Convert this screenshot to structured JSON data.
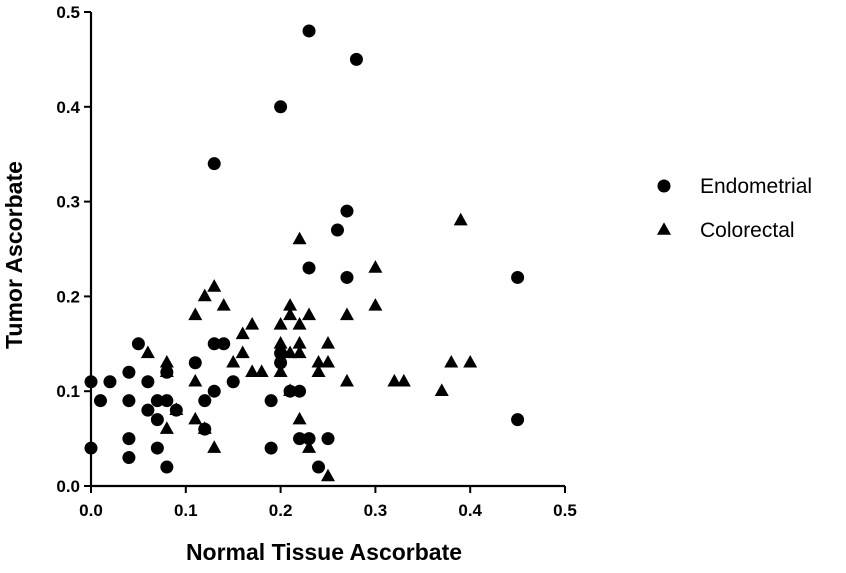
{
  "chart_data": {
    "type": "scatter",
    "xlabel": "Normal Tissue Ascorbate",
    "ylabel": "Tumor Ascorbate",
    "xlim": [
      0,
      0.5
    ],
    "ylim": [
      0,
      0.5
    ],
    "xticks": [
      "0.0",
      "0.1",
      "0.2",
      "0.3",
      "0.4",
      "0.5"
    ],
    "yticks": [
      "0.0",
      "0.1",
      "0.2",
      "0.3",
      "0.4",
      "0.5"
    ],
    "grid": false,
    "legend_position": "right",
    "series": [
      {
        "name": "Endometrial",
        "marker": "circle",
        "color": "#000000",
        "points": [
          [
            0.0,
            0.11
          ],
          [
            0.0,
            0.04
          ],
          [
            0.01,
            0.09
          ],
          [
            0.02,
            0.11
          ],
          [
            0.04,
            0.12
          ],
          [
            0.04,
            0.09
          ],
          [
            0.04,
            0.05
          ],
          [
            0.04,
            0.03
          ],
          [
            0.05,
            0.15
          ],
          [
            0.06,
            0.11
          ],
          [
            0.06,
            0.08
          ],
          [
            0.07,
            0.09
          ],
          [
            0.07,
            0.07
          ],
          [
            0.07,
            0.04
          ],
          [
            0.08,
            0.12
          ],
          [
            0.08,
            0.09
          ],
          [
            0.08,
            0.02
          ],
          [
            0.09,
            0.08
          ],
          [
            0.11,
            0.13
          ],
          [
            0.12,
            0.09
          ],
          [
            0.12,
            0.06
          ],
          [
            0.13,
            0.15
          ],
          [
            0.13,
            0.1
          ],
          [
            0.13,
            0.34
          ],
          [
            0.14,
            0.15
          ],
          [
            0.15,
            0.11
          ],
          [
            0.19,
            0.09
          ],
          [
            0.19,
            0.04
          ],
          [
            0.2,
            0.4
          ],
          [
            0.2,
            0.14
          ],
          [
            0.2,
            0.13
          ],
          [
            0.21,
            0.1
          ],
          [
            0.22,
            0.05
          ],
          [
            0.22,
            0.1
          ],
          [
            0.23,
            0.48
          ],
          [
            0.23,
            0.23
          ],
          [
            0.23,
            0.05
          ],
          [
            0.24,
            0.02
          ],
          [
            0.25,
            0.05
          ],
          [
            0.26,
            0.27
          ],
          [
            0.27,
            0.29
          ],
          [
            0.27,
            0.22
          ],
          [
            0.28,
            0.45
          ],
          [
            0.45,
            0.22
          ],
          [
            0.45,
            0.07
          ]
        ]
      },
      {
        "name": "Colorectal",
        "marker": "triangle",
        "color": "#000000",
        "points": [
          [
            0.06,
            0.14
          ],
          [
            0.08,
            0.13
          ],
          [
            0.08,
            0.12
          ],
          [
            0.08,
            0.06
          ],
          [
            0.09,
            0.08
          ],
          [
            0.11,
            0.18
          ],
          [
            0.11,
            0.11
          ],
          [
            0.11,
            0.07
          ],
          [
            0.12,
            0.2
          ],
          [
            0.12,
            0.06
          ],
          [
            0.13,
            0.21
          ],
          [
            0.13,
            0.04
          ],
          [
            0.14,
            0.19
          ],
          [
            0.15,
            0.13
          ],
          [
            0.16,
            0.16
          ],
          [
            0.16,
            0.14
          ],
          [
            0.17,
            0.17
          ],
          [
            0.17,
            0.12
          ],
          [
            0.18,
            0.12
          ],
          [
            0.2,
            0.17
          ],
          [
            0.2,
            0.15
          ],
          [
            0.2,
            0.12
          ],
          [
            0.21,
            0.19
          ],
          [
            0.21,
            0.18
          ],
          [
            0.21,
            0.14
          ],
          [
            0.21,
            0.1
          ],
          [
            0.22,
            0.26
          ],
          [
            0.22,
            0.17
          ],
          [
            0.22,
            0.15
          ],
          [
            0.22,
            0.14
          ],
          [
            0.22,
            0.07
          ],
          [
            0.23,
            0.18
          ],
          [
            0.23,
            0.04
          ],
          [
            0.24,
            0.13
          ],
          [
            0.24,
            0.12
          ],
          [
            0.25,
            0.15
          ],
          [
            0.25,
            0.13
          ],
          [
            0.25,
            0.01
          ],
          [
            0.27,
            0.18
          ],
          [
            0.27,
            0.11
          ],
          [
            0.3,
            0.23
          ],
          [
            0.3,
            0.19
          ],
          [
            0.32,
            0.11
          ],
          [
            0.33,
            0.11
          ],
          [
            0.37,
            0.1
          ],
          [
            0.38,
            0.13
          ],
          [
            0.39,
            0.28
          ],
          [
            0.4,
            0.13
          ]
        ]
      }
    ]
  }
}
